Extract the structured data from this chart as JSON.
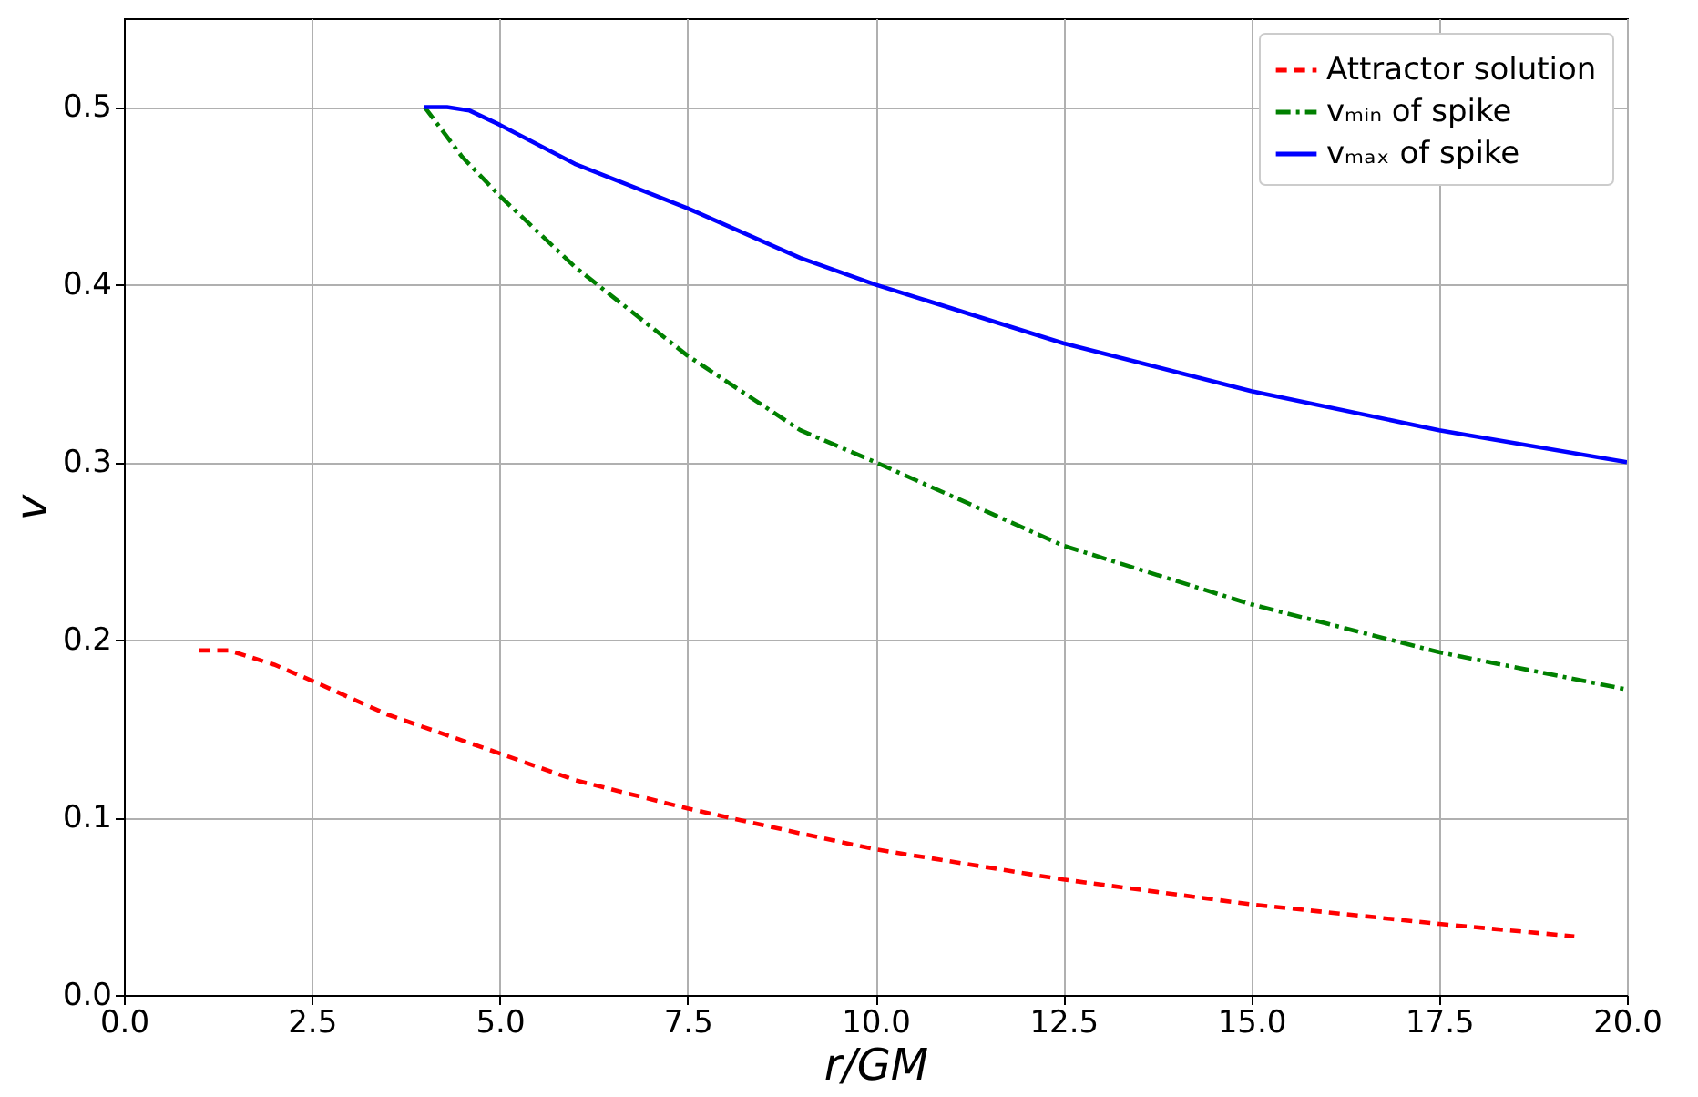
{
  "chart_data": {
    "type": "line",
    "xlabel": "r/GM",
    "ylabel": "v",
    "xlim": [
      0,
      20
    ],
    "xticks": [
      {
        "value": 0,
        "label": "0.0"
      },
      {
        "value": 2.5,
        "label": "2.5"
      },
      {
        "value": 5,
        "label": "5.0"
      },
      {
        "value": 7.5,
        "label": "7.5"
      },
      {
        "value": 10,
        "label": "10.0"
      },
      {
        "value": 12.5,
        "label": "12.5"
      },
      {
        "value": 15,
        "label": "15.0"
      },
      {
        "value": 17.5,
        "label": "17.5"
      },
      {
        "value": 20,
        "label": "20.0"
      }
    ],
    "ylim": [
      0,
      0.55
    ],
    "yticks": [
      {
        "value": 0,
        "label": "0.0"
      },
      0.1,
      0.2,
      0.3,
      0.4,
      0.5
    ],
    "grid": true,
    "legend": "top right",
    "marker": "none",
    "series": [
      {
        "name": "Attractor solution",
        "color": "#ff0000",
        "line_style": "dashed",
        "x": [
          1.0,
          1.4,
          2.0,
          2.5,
          3.5,
          5,
          6,
          7.5,
          9,
          10,
          12.5,
          15,
          17.5,
          19.3
        ],
        "values": [
          0.194,
          0.194,
          0.186,
          0.177,
          0.158,
          0.136,
          0.121,
          0.105,
          0.091,
          0.082,
          0.065,
          0.051,
          0.04,
          0.033
        ]
      },
      {
        "name": "vₘᵢₙ of spike",
        "color": "#008000",
        "line_style": "dashdot",
        "x": [
          4,
          4.5,
          5,
          6,
          7.5,
          9,
          10,
          12.5,
          15,
          17.5,
          20
        ],
        "values": [
          0.5,
          0.472,
          0.45,
          0.41,
          0.36,
          0.318,
          0.3,
          0.253,
          0.22,
          0.193,
          0.172
        ]
      },
      {
        "name": "vₘₐₓ of spike",
        "color": "#0000ff",
        "line_style": "solid",
        "x": [
          4,
          4.3,
          4.6,
          5,
          6,
          7.5,
          9,
          10,
          12.5,
          15,
          17.5,
          20
        ],
        "values": [
          0.5,
          0.5,
          0.498,
          0.49,
          0.468,
          0.443,
          0.415,
          0.4,
          0.367,
          0.34,
          0.318,
          0.3
        ]
      }
    ]
  }
}
